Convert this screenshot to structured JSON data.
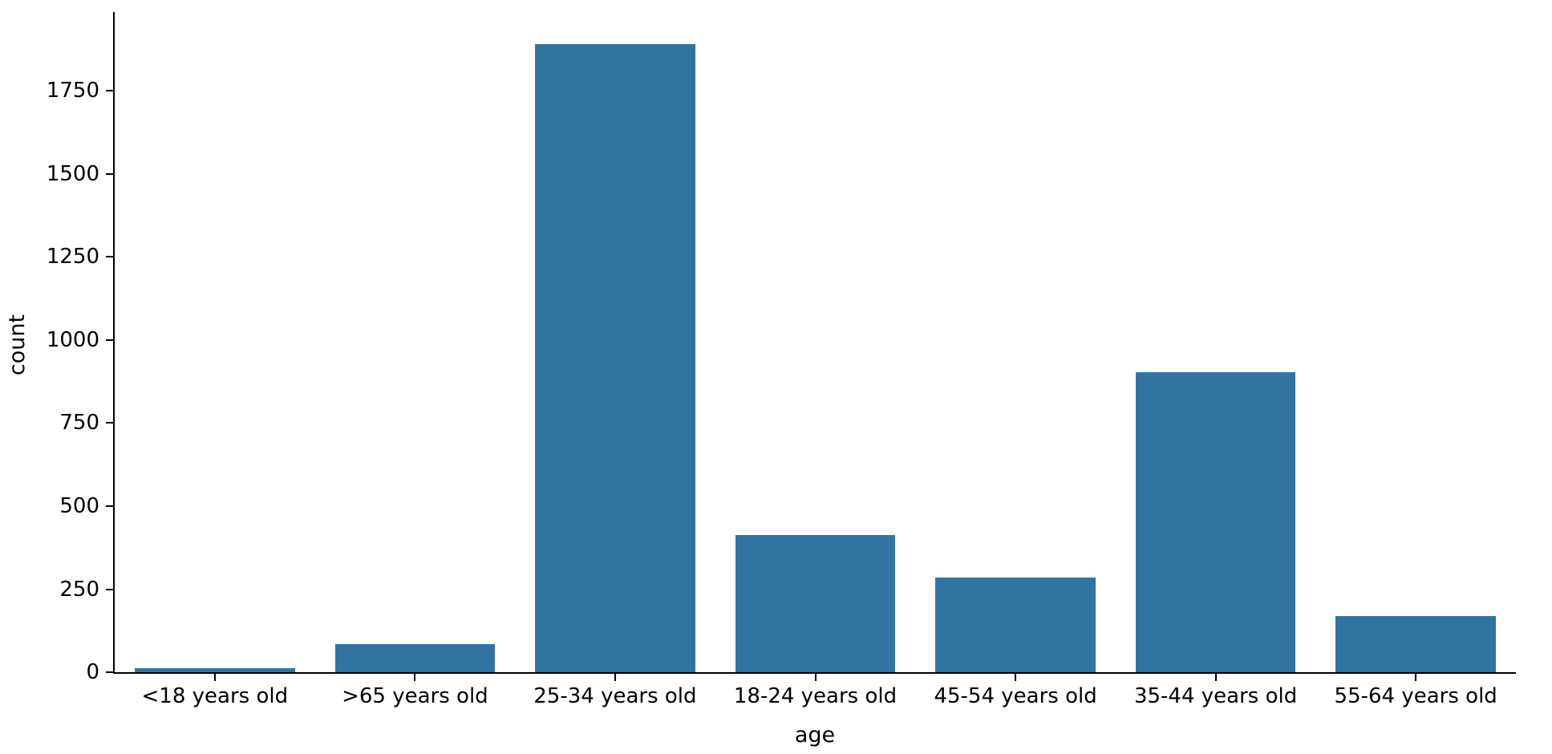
{
  "chart_data": {
    "type": "bar",
    "title": "",
    "xlabel": "age",
    "ylabel": "count",
    "categories": [
      "<18 years old",
      ">65 years old",
      "25-34 years old",
      "18-24 years old",
      "45-54 years old",
      "35-44 years old",
      "55-64 years old"
    ],
    "values": [
      13,
      85,
      1890,
      413,
      284,
      904,
      170
    ],
    "yticks": [
      0,
      250,
      500,
      750,
      1000,
      1250,
      1500,
      1750
    ],
    "ylim": [
      0,
      1987
    ],
    "bar_color": "#3274a1",
    "axis_color": "#000000",
    "text_color": "#000000",
    "background_color": "#ffffff",
    "grid": false,
    "legend": null,
    "bar_width_fraction": 0.8
  }
}
